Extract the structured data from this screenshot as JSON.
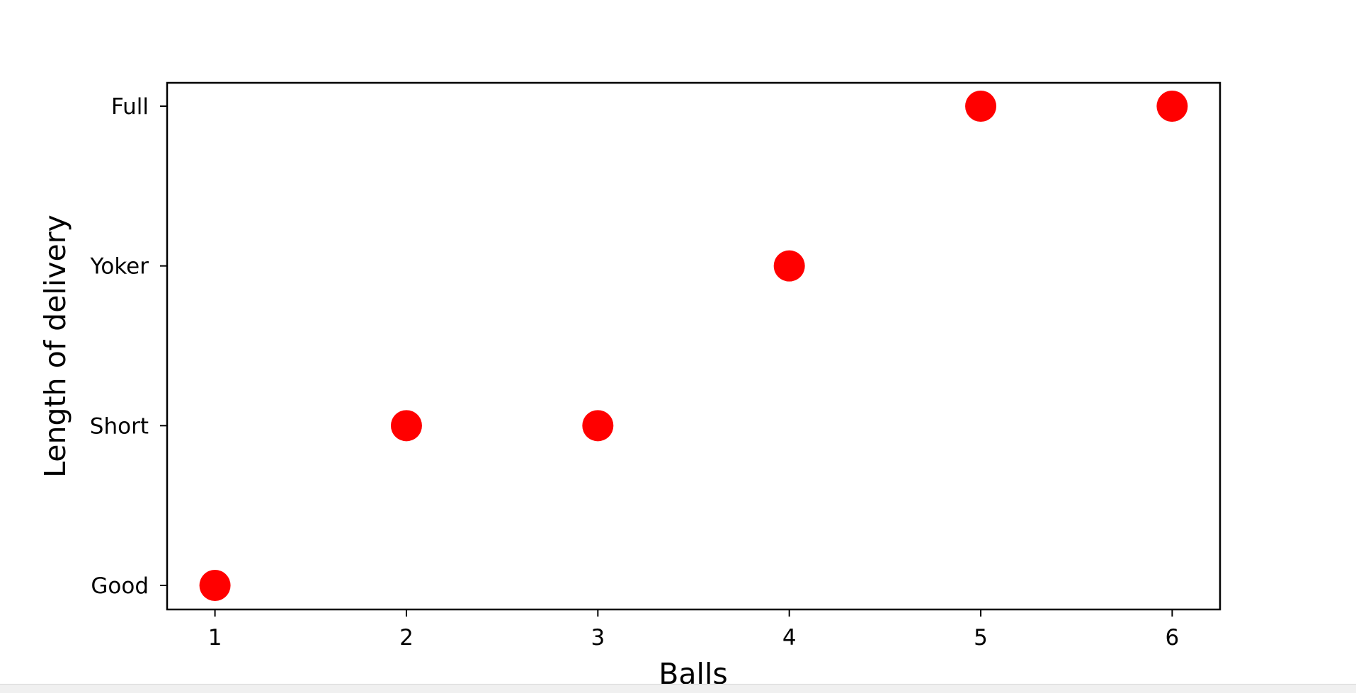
{
  "chart_data": {
    "type": "scatter",
    "title": "",
    "xlabel": "Balls",
    "ylabel": "Length of delivery",
    "x": [
      1,
      2,
      3,
      4,
      5,
      6
    ],
    "y": [
      "Good",
      "Short",
      "Short",
      "Yoker",
      "Full",
      "Full"
    ],
    "y_categories": [
      "Good",
      "Short",
      "Yoker",
      "Full"
    ],
    "x_ticks": [
      "1",
      "2",
      "3",
      "4",
      "5",
      "6"
    ],
    "xlim": [
      0.75,
      6.25
    ],
    "marker_color": "#ff0000",
    "grid": false,
    "legend": "none"
  }
}
